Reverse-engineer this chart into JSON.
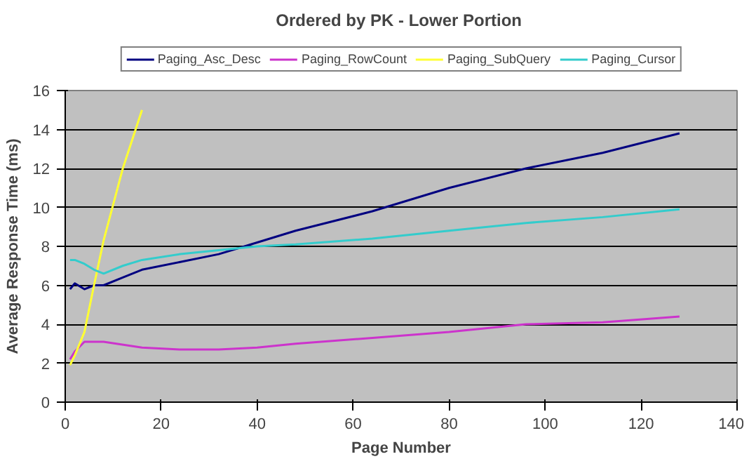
{
  "chart_data": {
    "type": "line",
    "title": "Ordered by PK  - Lower Portion",
    "xlabel": "Page Number",
    "ylabel": "Average Response Time (ms)",
    "xlim": [
      0,
      140
    ],
    "xticks": [
      0,
      20,
      40,
      60,
      80,
      100,
      120,
      140
    ],
    "ylim": [
      0,
      16
    ],
    "yticks": [
      0,
      2,
      4,
      6,
      8,
      10,
      12,
      14,
      16
    ],
    "grid": "y",
    "legend": "top",
    "marker": "none",
    "series": [
      {
        "name": "Paging_Asc_Desc",
        "color": "#000080",
        "x": [
          1,
          2,
          4,
          6,
          8,
          12,
          16,
          24,
          32,
          40,
          48,
          64,
          80,
          96,
          112,
          128
        ],
        "values": [
          5.8,
          6.1,
          5.8,
          6.0,
          6.0,
          6.4,
          6.8,
          7.2,
          7.6,
          8.2,
          8.8,
          9.8,
          11.0,
          12.0,
          12.8,
          13.8
        ]
      },
      {
        "name": "Paging_RowCount",
        "color": "#cc33cc",
        "x": [
          1,
          2,
          4,
          8,
          16,
          24,
          32,
          40,
          48,
          64,
          80,
          96,
          112,
          128
        ],
        "values": [
          2.2,
          2.6,
          3.1,
          3.1,
          2.8,
          2.7,
          2.7,
          2.8,
          3.0,
          3.3,
          3.6,
          4.0,
          4.1,
          4.4
        ]
      },
      {
        "name": "Paging_SubQuery",
        "color": "#ffff33",
        "x": [
          1,
          2,
          4,
          6,
          8,
          12,
          16
        ],
        "values": [
          1.9,
          2.4,
          3.6,
          6.0,
          8.3,
          12.0,
          15.0
        ]
      },
      {
        "name": "Paging_Cursor",
        "color": "#33cccc",
        "x": [
          1,
          2,
          4,
          6,
          8,
          12,
          16,
          24,
          32,
          40,
          48,
          64,
          80,
          96,
          112,
          128
        ],
        "values": [
          7.3,
          7.3,
          7.1,
          6.8,
          6.6,
          7.0,
          7.3,
          7.6,
          7.8,
          8.0,
          8.1,
          8.4,
          8.8,
          9.2,
          9.5,
          9.9
        ]
      }
    ]
  }
}
